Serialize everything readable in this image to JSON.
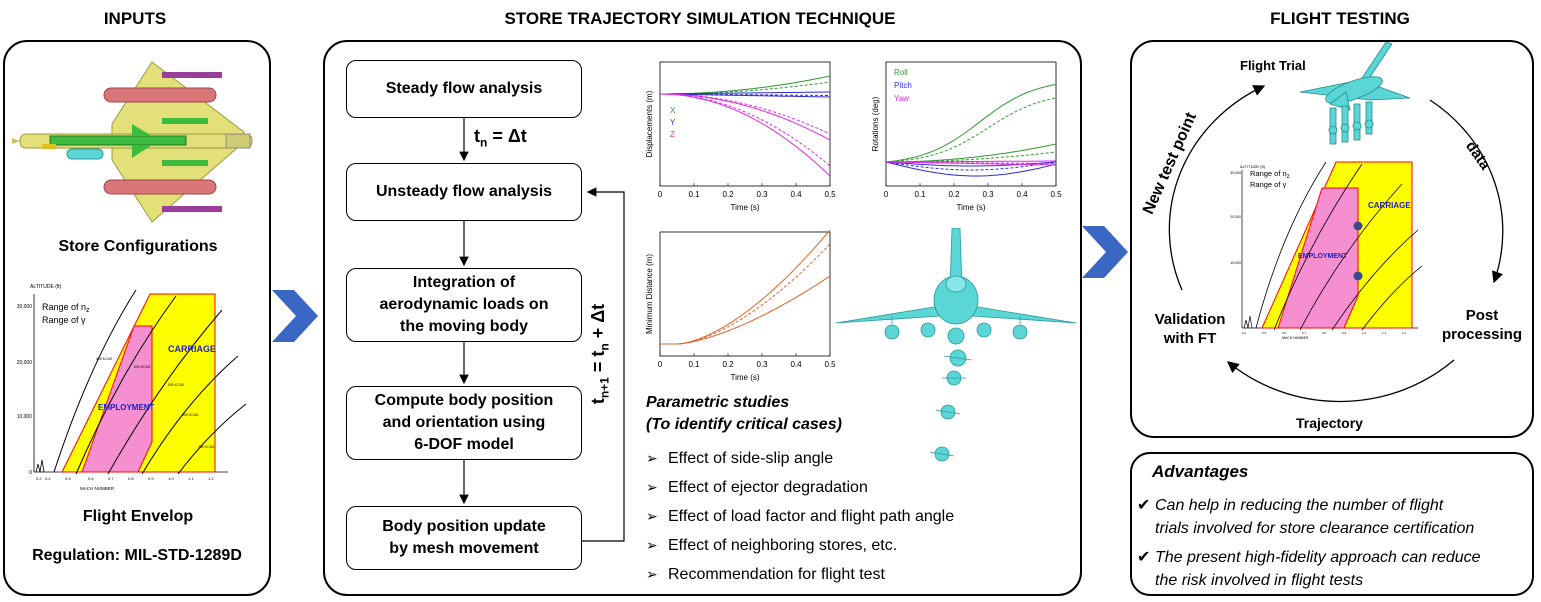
{
  "headers": {
    "inputs": "INPUTS",
    "technique": "STORE TRAJECTORY SIMULATION TECHNIQUE",
    "flight_testing": "FLIGHT TESTING"
  },
  "inputs": {
    "store_configurations": "Store Configurations",
    "flight_envelop": "Flight Envelop",
    "regulation": "Regulation: MIL-STD-1289D"
  },
  "envelope": {
    "y_title": "ALTITUDE (ft)",
    "x_title": "MACH NUMBER",
    "y_ticks": [
      "30,000",
      "20,000",
      "10,000",
      "0"
    ],
    "x_ticks": [
      "0.2",
      "0.4",
      "0.5",
      "0.6",
      "0.7",
      "0.8",
      "0.9",
      "1.0",
      "1.1",
      "1.2"
    ],
    "legend_n": "Range of n",
    "legend_n_sub": "z",
    "legend_g": "Range of γ",
    "carriage": "CARRIAGE",
    "employment": "EMPLOYMENT",
    "kcas": [
      "400 KCAS",
      "600 KCAS",
      "500 KCAS",
      "600 KCAS",
      "700 KCAS"
    ]
  },
  "flowchart": {
    "steady": "Steady flow analysis",
    "tn_main": "t",
    "tn_sub": "n",
    "tn_rest": " = Δt",
    "unsteady": "Unsteady flow analysis",
    "integration": [
      "Integration of",
      "aerodynamic loads on",
      "the moving body"
    ],
    "compute": [
      "Compute body position",
      "and orientation using",
      "6-DOF model"
    ],
    "update": [
      "Body position update",
      "by mesh movement"
    ],
    "loop_t": "t",
    "loop_sub1": "n+1",
    "loop_eq": " = t",
    "loop_sub2": "n",
    "loop_rest": " + Δt"
  },
  "chart_data": [
    {
      "type": "line",
      "ylabel": "Displacements (m)",
      "xlabel": "Time (s)",
      "x_ticks": [
        "0",
        "0.1",
        "0.2",
        "0.3",
        "0.4",
        "0.5"
      ],
      "xlim": [
        0,
        0.5
      ],
      "series": [
        {
          "name": "X",
          "color": "#2e9a2e"
        },
        {
          "name": "Y",
          "color": "#2b2bd6"
        },
        {
          "name": "Z",
          "color": "#e02ce0"
        }
      ]
    },
    {
      "type": "line",
      "ylabel": "Rotations (deg)",
      "xlabel": "Time (s)",
      "x_ticks": [
        "0",
        "0.1",
        "0.2",
        "0.3",
        "0.4",
        "0.5"
      ],
      "xlim": [
        0,
        0.5
      ],
      "series": [
        {
          "name": "Roll",
          "color": "#2e9a2e"
        },
        {
          "name": "Pitch",
          "color": "#2b2bd6"
        },
        {
          "name": "Yaw",
          "color": "#e02ce0"
        }
      ]
    },
    {
      "type": "line",
      "ylabel": "Minimum Distance (m)",
      "xlabel": "Time (s)",
      "x_ticks": [
        "0",
        "0.1",
        "0.2",
        "0.3",
        "0.4",
        "0.5"
      ],
      "xlim": [
        0,
        0.5
      ],
      "series": [
        {
          "color": "#e0632a"
        }
      ]
    }
  ],
  "parametric": {
    "title1": "Parametric studies",
    "title2": "(To identify critical cases)",
    "items": [
      "Effect of side-slip angle",
      "Effect of ejector degradation",
      "Effect of load factor and flight path angle",
      "Effect of neighboring stores, etc.",
      "Recommendation for flight test"
    ]
  },
  "cycle": {
    "flight_trial": "Flight Trial",
    "data": "data",
    "post1": "Post",
    "post2": "processing",
    "trajectory": "Trajectory",
    "validation1": "Validation",
    "validation2": "with FT",
    "new_test": "New test point"
  },
  "advantages": {
    "title": "Advantages",
    "items": [
      [
        "Can help in reducing the number of flight",
        "trials involved for store clearance certification"
      ],
      [
        "The present high-fidelity approach can reduce",
        "the risk involved in flight tests"
      ]
    ]
  },
  "colors": {
    "yellow": "#ffff00",
    "pink": "#f58fd0",
    "cyan": "#5ad6d6",
    "chevron": "#3a66c4",
    "aircraft": "#e3e07a"
  }
}
